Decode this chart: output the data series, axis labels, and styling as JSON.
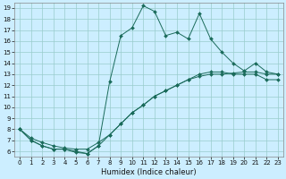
{
  "title": "",
  "xlabel": "Humidex (Indice chaleur)",
  "bg_color": "#cceeff",
  "grid_color": "#99cccc",
  "line_color": "#1a6b5a",
  "xlim": [
    -0.5,
    23.5
  ],
  "ylim": [
    5.5,
    19.5
  ],
  "xticks": [
    0,
    1,
    2,
    3,
    4,
    5,
    6,
    7,
    8,
    9,
    10,
    11,
    12,
    13,
    14,
    15,
    16,
    17,
    18,
    19,
    20,
    21,
    22,
    23
  ],
  "yticks": [
    6,
    7,
    8,
    9,
    10,
    11,
    12,
    13,
    14,
    15,
    16,
    17,
    18,
    19
  ],
  "series1_x": [
    0,
    1,
    2,
    3,
    4,
    5,
    6,
    7,
    8,
    9,
    10,
    11,
    12,
    13,
    14,
    15,
    16,
    17,
    18,
    19,
    20,
    21,
    22,
    23
  ],
  "series1_y": [
    8.0,
    7.0,
    6.5,
    6.2,
    6.2,
    6.0,
    5.8,
    6.5,
    7.5,
    8.5,
    9.5,
    10.2,
    11.0,
    11.5,
    12.0,
    12.5,
    13.0,
    13.2,
    13.2,
    13.0,
    13.0,
    13.0,
    12.5,
    12.5
  ],
  "series2_x": [
    0,
    1,
    2,
    3,
    4,
    5,
    6,
    7,
    8,
    9,
    10,
    11,
    12,
    13,
    14,
    15,
    16,
    17,
    18,
    19,
    20,
    21,
    22,
    23
  ],
  "series2_y": [
    8.0,
    7.2,
    6.8,
    6.5,
    6.3,
    6.2,
    6.2,
    6.8,
    7.5,
    8.5,
    9.5,
    10.2,
    11.0,
    11.5,
    12.0,
    12.5,
    12.8,
    13.0,
    13.0,
    13.1,
    13.2,
    13.2,
    13.0,
    13.0
  ],
  "series3_x": [
    0,
    1,
    2,
    3,
    4,
    5,
    6,
    7,
    8,
    9,
    10,
    11,
    12,
    13,
    14,
    15,
    16,
    17,
    18,
    19,
    20,
    21,
    22,
    23
  ],
  "series3_y": [
    8.0,
    7.0,
    6.5,
    6.2,
    6.2,
    5.9,
    5.8,
    6.5,
    12.3,
    16.5,
    17.2,
    19.2,
    18.7,
    16.5,
    16.8,
    16.2,
    18.5,
    16.2,
    15.0,
    14.0,
    13.3,
    14.0,
    13.2,
    13.0
  ],
  "marker": "D",
  "markersize": 2.0,
  "linewidth": 0.7,
  "tick_fontsize": 5.0,
  "xlabel_fontsize": 6.0
}
